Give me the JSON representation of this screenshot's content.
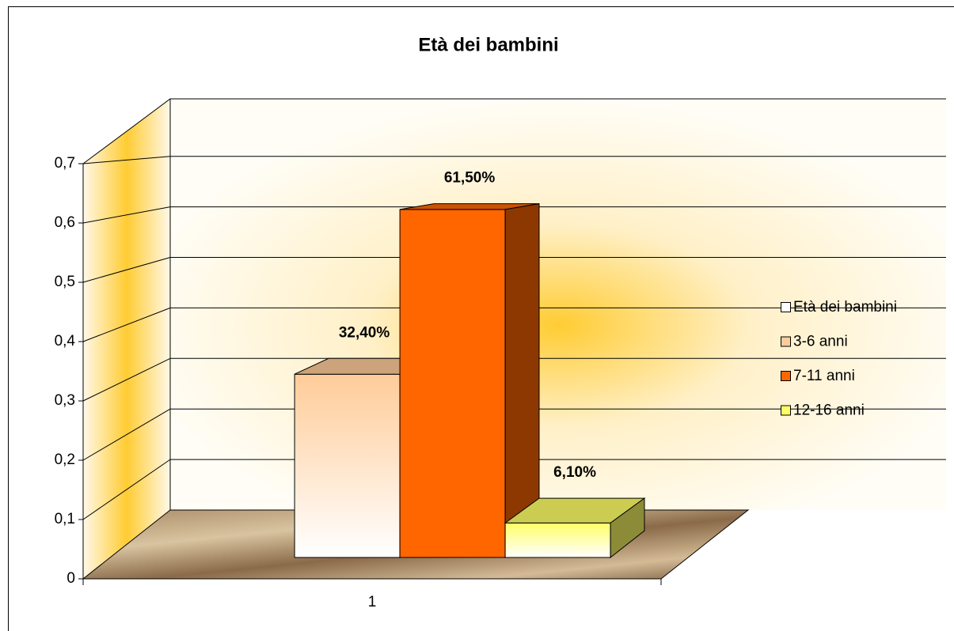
{
  "chart_data": {
    "type": "bar3d",
    "title": "Età dei bambini",
    "categories": [
      "1"
    ],
    "series": [
      {
        "name": "Età dei bambini",
        "color": "#ffffff",
        "values": [
          null
        ]
      },
      {
        "name": "3-6 anni",
        "color": "#ffcc99",
        "values": [
          0.324
        ],
        "value_labels": [
          "32,40%"
        ]
      },
      {
        "name": "7-11 anni",
        "color": "#ff6600",
        "values": [
          0.615
        ],
        "value_labels": [
          "61,50%"
        ]
      },
      {
        "name": "12-16 anni",
        "color": "#ffff66",
        "values": [
          0.061
        ],
        "value_labels": [
          "6,10%"
        ]
      }
    ],
    "ylim": [
      0,
      0.7
    ],
    "yticks": [
      0,
      {
        "value": 0.1,
        "label": "0,1"
      },
      {
        "value": 0.2,
        "label": "0,2"
      },
      {
        "value": 0.3,
        "label": "0,3"
      },
      {
        "value": 0.4,
        "label": "0,4"
      },
      {
        "value": 0.5,
        "label": "0,5"
      },
      {
        "value": 0.6,
        "label": "0,6"
      },
      {
        "value": 0.7,
        "label": "0,7"
      }
    ],
    "grid": true,
    "legend": "right"
  }
}
